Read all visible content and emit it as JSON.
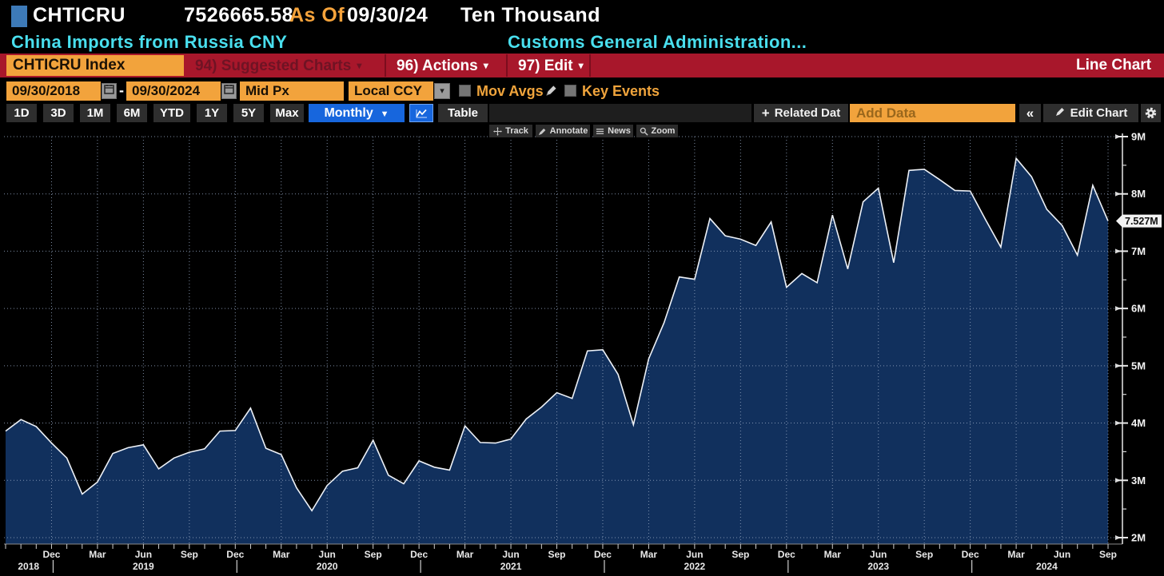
{
  "header": {
    "ticker": "CHTICRU",
    "last_value": "7526665.58",
    "as_of_label": "As Of",
    "as_of_date": "09/30/24",
    "unit": "Ten Thousand",
    "security_name": "China Imports from Russia CNY",
    "source": "Customs General Administration..."
  },
  "menubar": {
    "ticker_box": "CHTICRU Index",
    "suggested": "94) Suggested Charts",
    "actions": "96) Actions",
    "edit": "97) Edit",
    "chart_type": "Line Chart"
  },
  "controls": {
    "date_from": "09/30/2018",
    "date_separator": "-",
    "date_to": "09/30/2024",
    "price_field": "Mid Px",
    "currency": "Local CCY",
    "mov_avgs": "Mov Avgs",
    "key_events": "Key Events"
  },
  "toolbar": {
    "ranges": [
      "1D",
      "3D",
      "1M",
      "6M",
      "YTD",
      "1Y",
      "5Y",
      "Max"
    ],
    "period": "Monthly",
    "table": "Table",
    "related": "Related Dat",
    "add_data_placeholder": "Add Data",
    "edit_chart": "Edit Chart"
  },
  "chart_tools": [
    "Track",
    "Annotate",
    "News",
    "Zoom"
  ],
  "icons": {
    "down_triangle": "▼",
    "down_small": "▾",
    "double_left_chevron": "«",
    "plus": "+"
  },
  "colors": {
    "amber": "#f6a33b",
    "cyan": "#49dfee",
    "menubar_red": "#a8172b",
    "selected_blue": "#1766dd",
    "area_fill": "#11305d",
    "series_line": "#edf1f7"
  },
  "chart_data": {
    "type": "area",
    "title": "CHTICRU Index — China Imports from Russia CNY",
    "frequency": "monthly",
    "x_start": "Sep 2018",
    "x_end": "Sep 2024",
    "unit": "Ten Thousand (axis ticks in millions, M)",
    "ylim": [
      2,
      9
    ],
    "grid": true,
    "legend_position": "none",
    "values": [
      3.86,
      4.06,
      3.94,
      3.65,
      3.39,
      2.76,
      2.97,
      3.47,
      3.57,
      3.62,
      3.2,
      3.39,
      3.49,
      3.55,
      3.86,
      3.87,
      4.26,
      3.56,
      3.45,
      2.87,
      2.47,
      2.91,
      3.16,
      3.22,
      3.7,
      3.09,
      2.94,
      3.34,
      3.23,
      3.18,
      3.95,
      3.66,
      3.65,
      3.72,
      4.07,
      4.28,
      4.53,
      4.43,
      5.26,
      5.28,
      4.85,
      3.97,
      5.12,
      5.75,
      6.55,
      6.51,
      7.57,
      7.27,
      7.21,
      7.1,
      7.51,
      6.37,
      6.61,
      6.45,
      7.63,
      6.69,
      7.86,
      8.1,
      6.8,
      8.41,
      8.43,
      8.25,
      8.06,
      8.05,
      7.55,
      7.07,
      8.62,
      8.3,
      7.73,
      7.45,
      6.93,
      8.15,
      7.527
    ],
    "last_point": {
      "label": "7.527M",
      "value": 7.527
    },
    "y_axis": {
      "side": "right",
      "major": [
        {
          "v": 9,
          "t": "9M"
        },
        {
          "v": 8,
          "t": "8M"
        },
        {
          "v": 7,
          "t": "7M"
        },
        {
          "v": 6,
          "t": "6M"
        },
        {
          "v": 5,
          "t": "5M"
        },
        {
          "v": 4,
          "t": "4M"
        },
        {
          "v": 3,
          "t": "3M"
        },
        {
          "v": 2,
          "t": "2M"
        }
      ]
    },
    "x_axis": {
      "quarters": [
        {
          "i": 3,
          "t": "Dec"
        },
        {
          "i": 6,
          "t": "Mar"
        },
        {
          "i": 9,
          "t": "Jun"
        },
        {
          "i": 12,
          "t": "Sep"
        },
        {
          "i": 15,
          "t": "Dec"
        },
        {
          "i": 18,
          "t": "Mar"
        },
        {
          "i": 21,
          "t": "Jun"
        },
        {
          "i": 24,
          "t": "Sep"
        },
        {
          "i": 27,
          "t": "Dec"
        },
        {
          "i": 30,
          "t": "Mar"
        },
        {
          "i": 33,
          "t": "Jun"
        },
        {
          "i": 36,
          "t": "Sep"
        },
        {
          "i": 39,
          "t": "Dec"
        },
        {
          "i": 42,
          "t": "Mar"
        },
        {
          "i": 45,
          "t": "Jun"
        },
        {
          "i": 48,
          "t": "Sep"
        },
        {
          "i": 51,
          "t": "Dec"
        },
        {
          "i": 54,
          "t": "Mar"
        },
        {
          "i": 57,
          "t": "Jun"
        },
        {
          "i": 60,
          "t": "Sep"
        },
        {
          "i": 63,
          "t": "Dec"
        },
        {
          "i": 66,
          "t": "Mar"
        },
        {
          "i": 69,
          "t": "Jun"
        },
        {
          "i": 72,
          "t": "Sep"
        }
      ],
      "years": [
        {
          "i": 1.5,
          "t": "2018"
        },
        {
          "i": 9,
          "t": "2019"
        },
        {
          "i": 21,
          "t": "2020"
        },
        {
          "i": 33,
          "t": "2021"
        },
        {
          "i": 45,
          "t": "2022"
        },
        {
          "i": 57,
          "t": "2023"
        },
        {
          "i": 68,
          "t": "2024"
        }
      ],
      "year_dividers": [
        3,
        15,
        27,
        39,
        51,
        63
      ]
    }
  }
}
